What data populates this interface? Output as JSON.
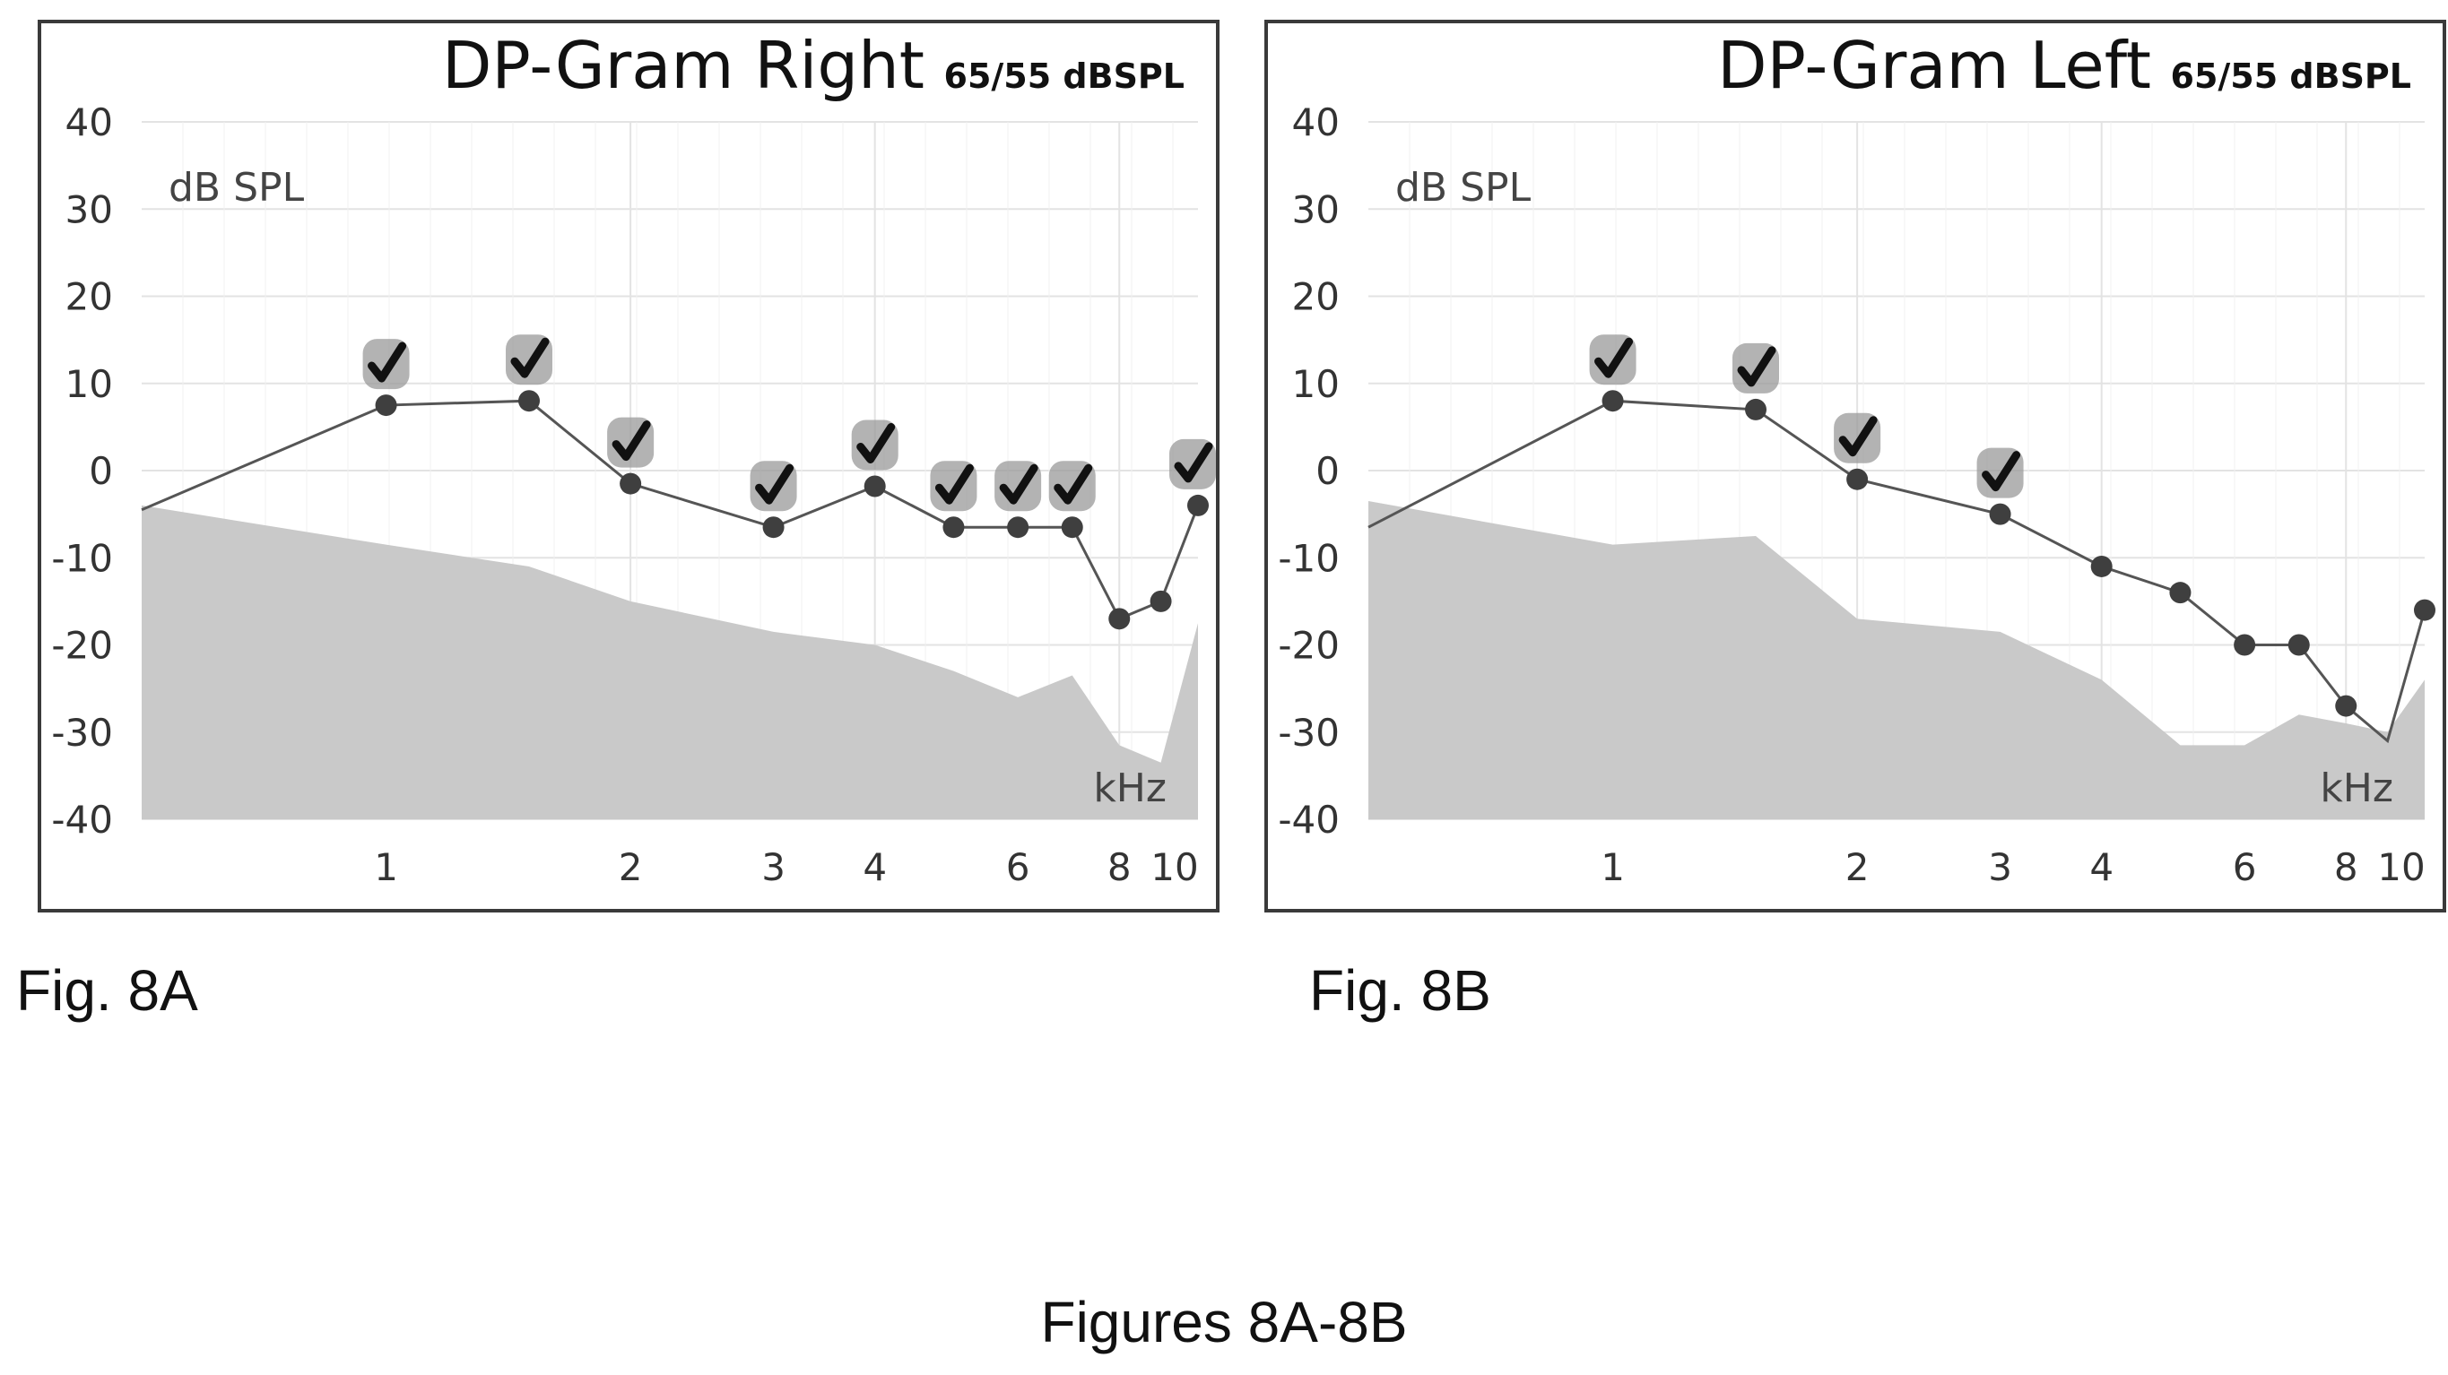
{
  "figure_caption": "Figures 8A-8B",
  "colors": {
    "noise_floor": "#c9c9c9",
    "grid": "#e3e3e3",
    "line": "#555555",
    "point": "#3f3f3f",
    "checkmark_badge": "#9a9a9a"
  },
  "chart_data": [
    {
      "type": "line",
      "figure_label": "Fig. 8A",
      "title": "DP-Gram Right",
      "level_label": "65/55 dBSPL",
      "ylabel": "dB SPL",
      "xlabel": "kHz",
      "x_scale": "log",
      "xlim": [
        0.5,
        10
      ],
      "ylim": [
        -40,
        40
      ],
      "y_ticks": [
        40,
        30,
        20,
        10,
        0,
        -10,
        -20,
        -30,
        -40
      ],
      "y_tick_labels": [
        "40",
        "30",
        "20",
        "10",
        "0",
        "-10",
        "-20",
        "-30",
        "-40"
      ],
      "x_ticks": [
        1,
        2,
        3,
        4,
        6,
        8,
        10
      ],
      "x_tick_labels": [
        "1",
        "2",
        "3",
        "4",
        "6",
        "8",
        "10"
      ],
      "x_gridlines": [
        2,
        4,
        8
      ],
      "grid": true,
      "series": [
        {
          "x": [
            0.5,
            1.0,
            1.5,
            2.0,
            3.0,
            4.0,
            5.0,
            6.0,
            7.0,
            8.0,
            9.0,
            10.0
          ],
          "y": [
            -4.5,
            7.5,
            8.0,
            -1.5,
            -6.5,
            -1.8,
            -6.5,
            -6.5,
            -6.5,
            -17.0,
            -15.0,
            -4.0
          ],
          "markers": [
            false,
            true,
            true,
            true,
            true,
            true,
            true,
            true,
            true,
            true,
            true,
            true
          ]
        }
      ],
      "passed_x": [
        1.0,
        1.5,
        2.0,
        3.0,
        4.0,
        5.0,
        6.0,
        7.0,
        10.0
      ],
      "noise_floor": {
        "x": [
          0.5,
          1.0,
          1.5,
          2.0,
          3.0,
          4.0,
          5.0,
          6.0,
          7.0,
          8.0,
          9.0,
          10.0
        ],
        "y": [
          -4.0,
          -8.5,
          -11.0,
          -15.0,
          -18.5,
          -20.0,
          -23.0,
          -26.0,
          -23.5,
          -31.5,
          -33.5,
          -17.5
        ]
      }
    },
    {
      "type": "line",
      "figure_label": "Fig. 8B",
      "title": "DP-Gram Left",
      "level_label": "65/55 dBSPL",
      "ylabel": "dB SPL",
      "xlabel": "kHz",
      "x_scale": "log",
      "xlim": [
        0.5,
        10
      ],
      "ylim": [
        -40,
        40
      ],
      "y_ticks": [
        40,
        30,
        20,
        10,
        0,
        -10,
        -20,
        -30,
        -40
      ],
      "y_tick_labels": [
        "40",
        "30",
        "20",
        "10",
        "0",
        "-10",
        "-20",
        "-30",
        "-40"
      ],
      "x_ticks": [
        1,
        2,
        3,
        4,
        6,
        8,
        10
      ],
      "x_tick_labels": [
        "1",
        "2",
        "3",
        "4",
        "6",
        "8",
        "10"
      ],
      "x_gridlines": [
        2,
        4,
        8
      ],
      "grid": true,
      "series": [
        {
          "x": [
            0.5,
            1.0,
            1.5,
            2.0,
            3.0,
            4.0,
            5.0,
            6.0,
            7.0,
            8.0,
            9.0,
            10.0
          ],
          "y": [
            -6.5,
            8.0,
            7.0,
            -1.0,
            -5.0,
            -11.0,
            -14.0,
            -20.0,
            -20.0,
            -27.0,
            -31.0,
            -16.0
          ],
          "markers": [
            false,
            true,
            true,
            true,
            true,
            true,
            true,
            true,
            true,
            true,
            false,
            true
          ]
        }
      ],
      "passed_x": [
        1.0,
        1.5,
        2.0,
        3.0
      ],
      "noise_floor": {
        "x": [
          0.5,
          1.0,
          1.5,
          2.0,
          3.0,
          4.0,
          5.0,
          6.0,
          7.0,
          8.0,
          9.0,
          10.0
        ],
        "y": [
          -3.5,
          -8.5,
          -7.5,
          -17.0,
          -18.5,
          -24.0,
          -31.5,
          -31.5,
          -28.0,
          -29.0,
          -30.0,
          -24.0
        ]
      }
    }
  ]
}
